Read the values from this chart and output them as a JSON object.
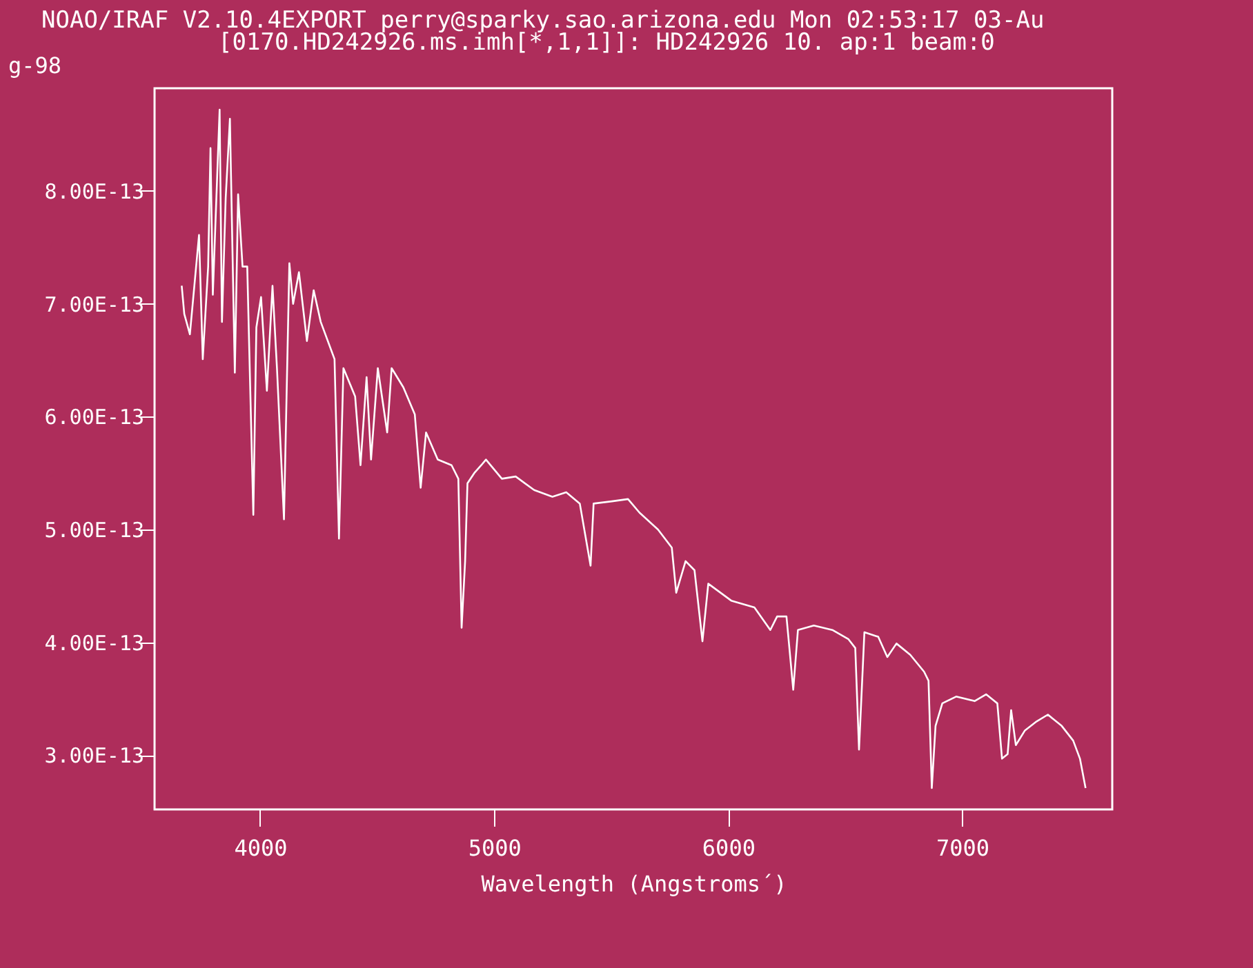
{
  "chart_data": {
    "type": "line",
    "title": "NOAO/IRAF V2.10.4EXPORT perry@sparky.sao.arizona.edu Mon 02:53:17 03-Au",
    "subtitle": "[0170.HD242926.ms.imh[*,1,1]]: HD242926 10. ap:1 beam:0",
    "annotations": [
      "g-98"
    ],
    "xlabel": "Wavelength (Angstroms´)",
    "color": "#ffffff",
    "grid": false,
    "xlim": [
      3549,
      7641
    ],
    "ylim": [
      2.52e-13,
      8.91e-13
    ],
    "xticks": [
      4000,
      5000,
      6000,
      7000
    ],
    "yticks": [
      {
        "value": 3e-13,
        "label": "3.00E-13"
      },
      {
        "value": 4e-13,
        "label": "4.00E-13"
      },
      {
        "value": 5e-13,
        "label": "5.00E-13"
      },
      {
        "value": 6e-13,
        "label": "6.00E-13"
      },
      {
        "value": 7e-13,
        "label": "7.00E-13"
      },
      {
        "value": 8e-13,
        "label": "8.00E-13"
      }
    ],
    "x": [
      3665,
      3676,
      3700,
      3739,
      3755,
      3778,
      3788,
      3798,
      3827,
      3837,
      3853,
      3871,
      3892,
      3906,
      3925,
      3945,
      3971,
      3984,
      4004,
      4029,
      4053,
      4072,
      4102,
      4125,
      4141,
      4166,
      4200,
      4229,
      4259,
      4318,
      4337,
      4356,
      4406,
      4429,
      4455,
      4474,
      4503,
      4543,
      4562,
      4612,
      4661,
      4686,
      4709,
      4759,
      4818,
      4847,
      4861,
      4876,
      4886,
      4915,
      4945,
      4965,
      5033,
      5092,
      5171,
      5249,
      5308,
      5366,
      5412,
      5425,
      5503,
      5572,
      5621,
      5700,
      5759,
      5778,
      5818,
      5856,
      5890,
      5915,
      6013,
      6112,
      6180,
      6209,
      6249,
      6278,
      6298,
      6366,
      6445,
      6513,
      6543,
      6559,
      6582,
      6641,
      6680,
      6719,
      6778,
      6837,
      6856,
      6870,
      6886,
      6915,
      6974,
      7053,
      7102,
      7150,
      7170,
      7194,
      7209,
      7229,
      7268,
      7318,
      7366,
      7425,
      7474,
      7503,
      7527
    ],
    "values": [
      7.16e-13,
      6.91e-13,
      6.73e-13,
      7.61e-13,
      6.51e-13,
      7.33e-13,
      8.38e-13,
      7.08e-13,
      8.72e-13,
      6.84e-13,
      7.94e-13,
      8.64e-13,
      6.39e-13,
      7.97e-13,
      7.33e-13,
      7.33e-13,
      5.13e-13,
      6.79e-13,
      7.06e-13,
      6.23e-13,
      7.16e-13,
      6.43e-13,
      5.09e-13,
      7.36e-13,
      7e-13,
      7.28e-13,
      6.67e-13,
      7.12e-13,
      6.84e-13,
      6.51e-13,
      4.92e-13,
      6.43e-13,
      6.18e-13,
      5.57e-13,
      6.35e-13,
      5.62e-13,
      6.43e-13,
      5.86e-13,
      6.43e-13,
      6.26e-13,
      6.02e-13,
      5.37e-13,
      5.86e-13,
      5.62e-13,
      5.57e-13,
      5.45e-13,
      4.13e-13,
      4.72e-13,
      5.41e-13,
      5.5e-13,
      5.57e-13,
      5.62e-13,
      5.45e-13,
      5.47e-13,
      5.35e-13,
      5.29e-13,
      5.33e-13,
      5.23e-13,
      4.68e-13,
      5.23e-13,
      5.25e-13,
      5.27e-13,
      5.15e-13,
      5e-13,
      4.84e-13,
      4.44e-13,
      4.72e-13,
      4.64e-13,
      4.01e-13,
      4.52e-13,
      4.37e-13,
      4.31e-13,
      4.11e-13,
      4.23e-13,
      4.23e-13,
      3.58e-13,
      4.11e-13,
      4.15e-13,
      4.11e-13,
      4.03e-13,
      3.95e-13,
      3.05e-13,
      4.09e-13,
      4.05e-13,
      3.87e-13,
      3.99e-13,
      3.89e-13,
      3.74e-13,
      3.66e-13,
      2.71e-13,
      3.26e-13,
      3.46e-13,
      3.52e-13,
      3.48e-13,
      3.54e-13,
      3.46e-13,
      2.97e-13,
      3.01e-13,
      3.4e-13,
      3.09e-13,
      3.22e-13,
      3.3e-13,
      3.36e-13,
      3.26e-13,
      3.13e-13,
      2.97e-13,
      2.71e-13
    ]
  }
}
